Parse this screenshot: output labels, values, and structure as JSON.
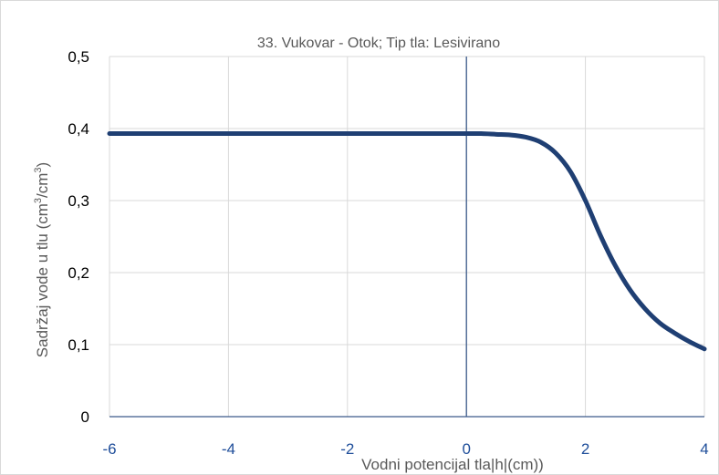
{
  "chart_data": {
    "type": "line",
    "title": "33. Vukovar - Otok; Tip tla: Lesivirano",
    "xlabel": "Vodni potencijal tla|h|(cm))",
    "ylabel_main": "Sadržaj vode u tlu  (cm",
    "ylabel_sup1": "3",
    "ylabel_mid": "/cm",
    "ylabel_sup2": "3",
    "ylabel_end": ")",
    "xlim": [
      -6,
      4
    ],
    "ylim": [
      0,
      0.5
    ],
    "x_ticks": [
      -6,
      -4,
      -2,
      0,
      2,
      4
    ],
    "x_tick_labels": [
      "-6",
      "-4",
      "-2",
      "0",
      "2",
      "4"
    ],
    "y_ticks": [
      0,
      0.1,
      0.2,
      0.3,
      0.4,
      0.5
    ],
    "y_tick_labels": [
      "0",
      "0,1",
      "0,2",
      "0,3",
      "0,4",
      "0,5"
    ],
    "grid": true,
    "series": [
      {
        "x": [
          -6,
          -5,
          -4,
          -3,
          -2,
          -1,
          0,
          0.25,
          0.5,
          0.75,
          1.0,
          1.25,
          1.5,
          1.75,
          2.0,
          2.25,
          2.5,
          2.75,
          3.0,
          3.25,
          3.5,
          3.75,
          4.0
        ],
        "y": [
          0.393,
          0.393,
          0.393,
          0.393,
          0.393,
          0.393,
          0.393,
          0.393,
          0.392,
          0.391,
          0.388,
          0.381,
          0.366,
          0.34,
          0.3,
          0.252,
          0.21,
          0.176,
          0.15,
          0.13,
          0.116,
          0.104,
          0.094
        ],
        "color": "#1f3f73"
      }
    ]
  }
}
